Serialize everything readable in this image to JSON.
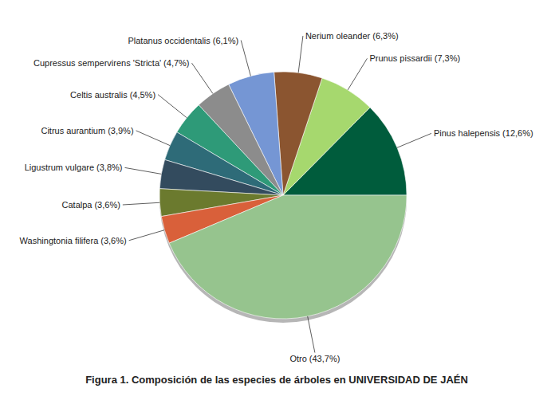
{
  "chart_data": {
    "type": "pie",
    "title": "Figura 1. Composición de las especies de árboles en UNIVERSIDAD DE JAÉN",
    "categories": [
      "Pinus halepensis",
      "Prunus pissardii",
      "Nerium oleander",
      "Platanus occidentalis",
      "Cupressus sempervirens 'Stricta'",
      "Celtis australis",
      "Citrus aurantium",
      "Ligustrum vulgare",
      "Catalpa",
      "Washingtonia filifera",
      "Otro"
    ],
    "values": [
      12.6,
      7.3,
      6.3,
      6.1,
      4.7,
      4.5,
      3.9,
      3.8,
      3.6,
      3.6,
      43.7
    ],
    "value_labels": [
      "(12,6%)",
      "(7,3%)",
      "(6,3%)",
      "(6,1%)",
      "(4,7%)",
      "(4,5%)",
      "(3,9%)",
      "(3,8%)",
      "(3,6%)",
      "(3,6%)",
      "(43,7%)"
    ],
    "colors": [
      "#005c3c",
      "#a6d86e",
      "#8b5530",
      "#7596d4",
      "#8c8c8c",
      "#2e9a78",
      "#2e6b78",
      "#334b5e",
      "#6b7a2e",
      "#d9603a",
      "#96c48e"
    ],
    "data_labels": true
  }
}
